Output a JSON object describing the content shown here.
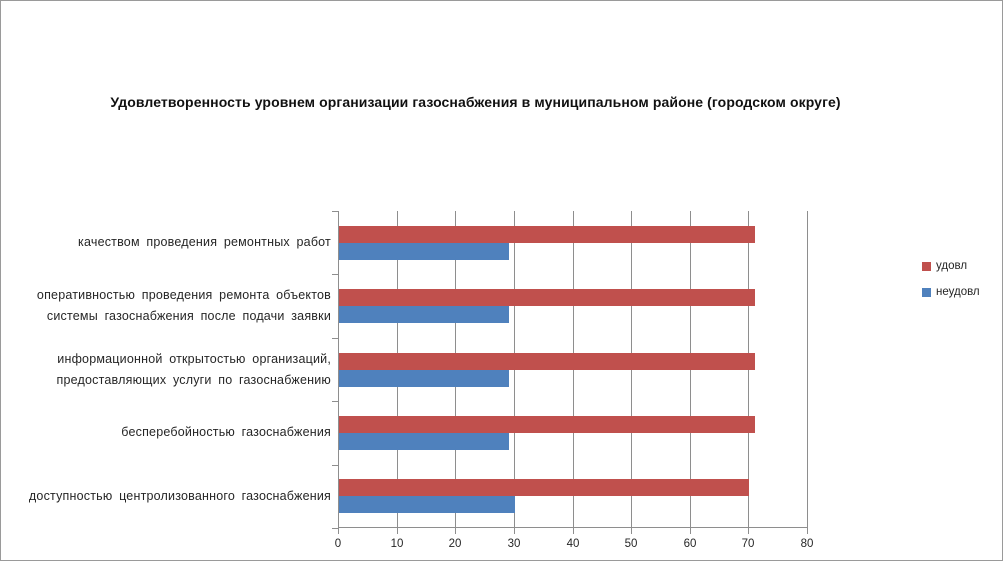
{
  "chart_data": {
    "type": "bar",
    "orientation": "horizontal",
    "title": "Удовлетворенность уровнем организации газоснабжения в муниципальном районе (городском округе)",
    "categories": [
      "качеством проведения ремонтных работ",
      "оперативностью проведения ремонта объектов системы газоснабжения после подачи заявки",
      "информационной открытостью организаций, предоставляющих услуги по газоснабжению",
      "бесперебойностью газоснабжения",
      "доступностью центролизованного газоснабжения"
    ],
    "series": [
      {
        "name": "удовл",
        "color": "#c0504d",
        "values": [
          71,
          71,
          71,
          71,
          70
        ]
      },
      {
        "name": "неудовл",
        "color": "#4f81bd",
        "values": [
          29,
          29,
          29,
          29,
          30
        ]
      }
    ],
    "xlim": [
      0,
      80
    ],
    "x_ticks": [
      0,
      10,
      20,
      30,
      40,
      50,
      60,
      70,
      80
    ],
    "grid": true,
    "legend_position": "right",
    "colors": {
      "gridline": "#8e8e8e",
      "axis": "#8e8e8e",
      "text": "#262626"
    }
  }
}
